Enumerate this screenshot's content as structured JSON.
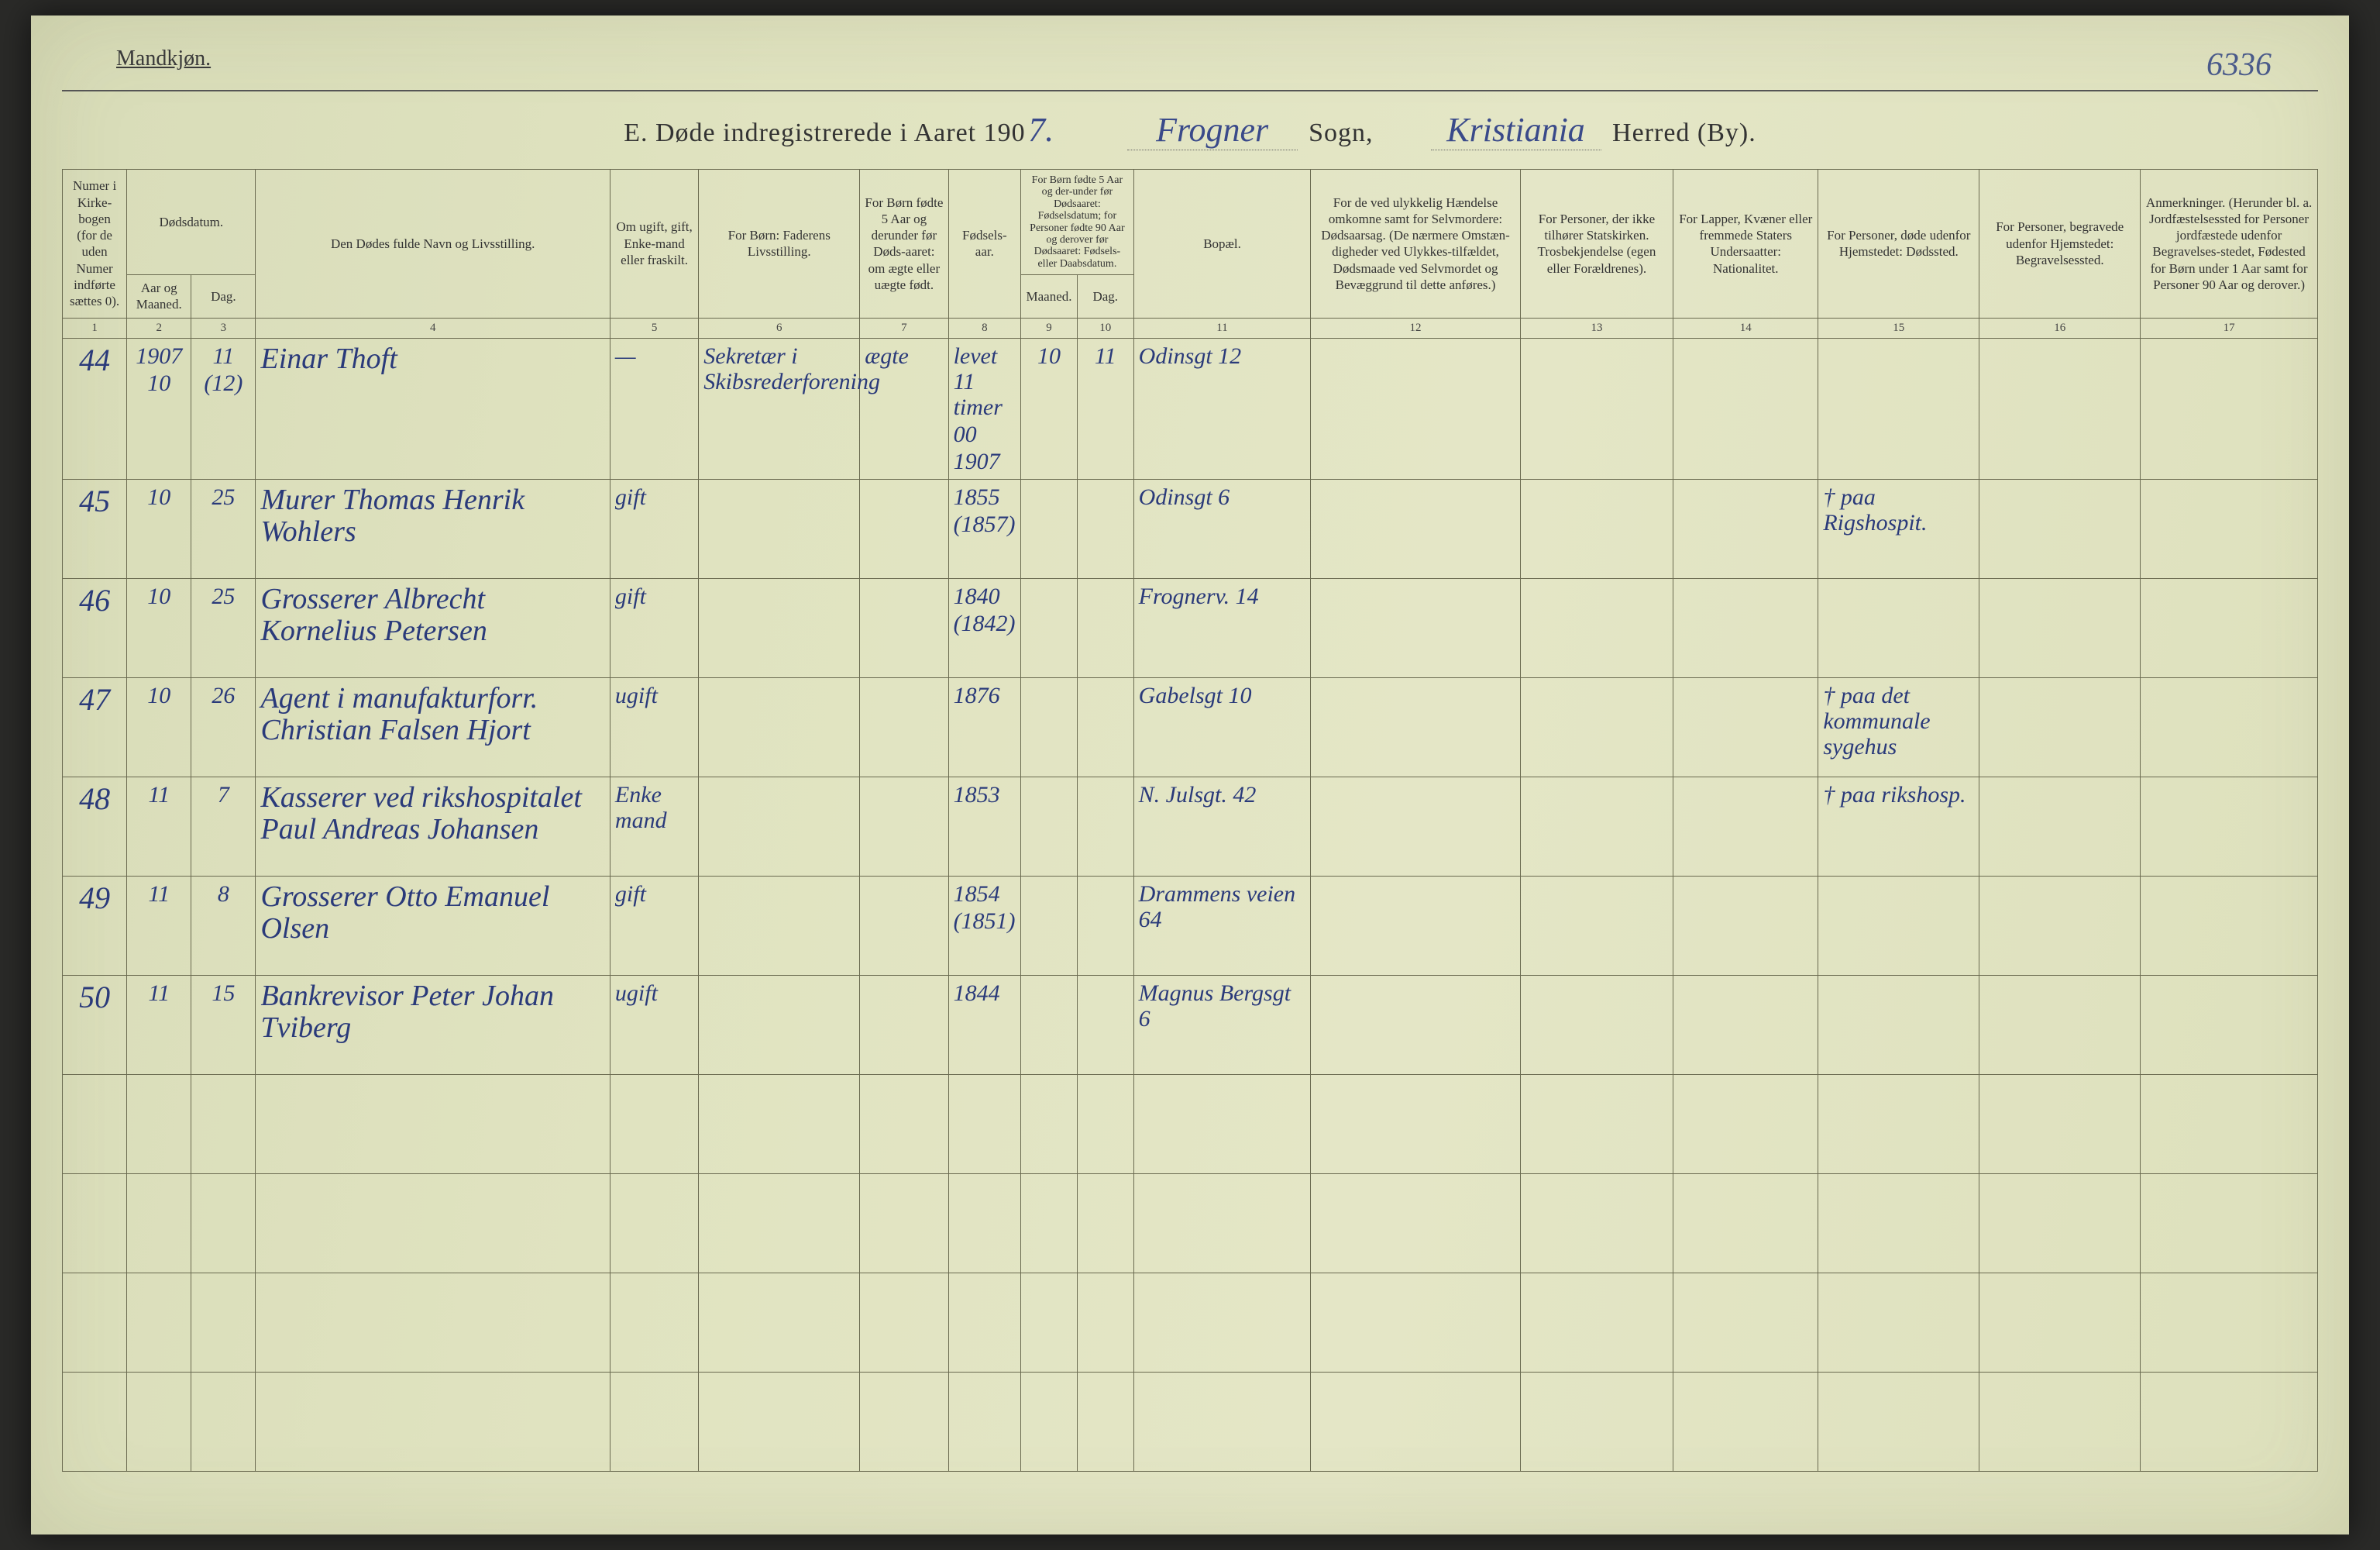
{
  "page_corner_number": "6336",
  "gender_label": "Mandkjøn.",
  "title": {
    "prefix": "E.  Døde indregistrerede i Aaret 190",
    "year_digit": "7.",
    "sogn_value": "Frogner",
    "sogn_label": "Sogn,",
    "herred_value": "Kristiania",
    "herred_label": "Herred (By)."
  },
  "columns": {
    "c1": "Numer i Kirke-bogen (for de uden Numer indførte sættes 0).",
    "c2_top": "Dødsdatum.",
    "c2": "Aar og Maaned.",
    "c3": "Dag.",
    "c4": "Den Dødes fulde Navn og Livsstilling.",
    "c5": "Om ugift, gift, Enke-mand eller fraskilt.",
    "c6": "For Børn:\nFaderens Livsstilling.",
    "c7": "For Børn fødte 5 Aar og derunder før Døds-aaret: om ægte eller uægte født.",
    "c8": "Fødsels-aar.",
    "c9_10": "For Børn fødte 5 Aar og der-under før Dødsaaret: Fødselsdatum; for Personer fødte 90 Aar og derover før Dødsaaret: Fødsels- eller Daabsdatum.",
    "c9": "Maaned.",
    "c10": "Dag.",
    "c11": "Bopæl.",
    "c12": "For de ved ulykkelig Hændelse omkomne samt for Selvmordere:\nDødsaarsag.\n(De nærmere Omstæn-digheder ved Ulykkes-tilfældet, Dødsmaade ved Selvmordet og Bevæggrund til dette anføres.)",
    "c13": "For Personer, der ikke tilhører Statskirken.\nTrosbekjendelse (egen eller Forældrenes).",
    "c14": "For Lapper, Kvæner eller fremmede Staters Undersaatter:\nNationalitet.",
    "c15": "For Personer, døde udenfor Hjemstedet:\nDødssted.",
    "c16": "For Personer, begravede udenfor Hjemstedet:\nBegravelsessted.",
    "c17": "Anmerkninger.\n(Herunder bl. a. Jordfæstelsessted for Personer jordfæstede udenfor Begravelses-stedet, Fødested for Børn under 1 Aar samt for Personer 90 Aar og derover.)"
  },
  "colnums": [
    "1",
    "2",
    "3",
    "4",
    "5",
    "6",
    "7",
    "8",
    "9",
    "10",
    "11",
    "12",
    "13",
    "14",
    "15",
    "16",
    "17"
  ],
  "rows": [
    {
      "no": "44",
      "aar": "1907\n10",
      "dag": "11\n(12)",
      "navn": "Einar Thoft",
      "stand": "—",
      "far": "Sekretær i Skibsrederforening",
      "c7": "ægte",
      "faar": "levet 11 timer\n00\n1907",
      "c9": "10",
      "c10": "11",
      "bopael": "Odinsgt 12",
      "c15": ""
    },
    {
      "no": "45",
      "aar": "10",
      "dag": "25",
      "navn": "Murer Thomas Henrik Wohlers",
      "stand": "gift",
      "faar": "1855\n(1857)",
      "bopael": "Odinsgt 6",
      "c15": "† paa Rigshospit."
    },
    {
      "no": "46",
      "aar": "10",
      "dag": "25",
      "navn": "Grosserer Albrecht Kornelius Petersen",
      "stand": "gift",
      "faar": "1840\n(1842)",
      "bopael": "Frognerv. 14",
      "c15": ""
    },
    {
      "no": "47",
      "aar": "10",
      "dag": "26",
      "navn": "Agent i manufakturforr. Christian Falsen Hjort",
      "stand": "ugift",
      "faar": "1876",
      "bopael": "Gabelsgt 10",
      "c15": "† paa det kommunale sygehus"
    },
    {
      "no": "48",
      "aar": "11",
      "dag": "7",
      "navn": "Kasserer ved rikshospitalet Paul Andreas Johansen",
      "stand": "Enke mand",
      "faar": "1853",
      "bopael": "N. Julsgt. 42",
      "c15": "† paa rikshosp."
    },
    {
      "no": "49",
      "aar": "11",
      "dag": "8",
      "navn": "Grosserer Otto Emanuel Olsen",
      "stand": "gift",
      "faar": "1854\n(1851)",
      "bopael": "Drammens veien 64",
      "c15": ""
    },
    {
      "no": "50",
      "aar": "11",
      "dag": "15",
      "navn": "Bankrevisor Peter Johan Tviberg",
      "stand": "ugift",
      "faar": "1844",
      "bopael": "Magnus Bergsgt 6",
      "c15": ""
    }
  ],
  "empty_rows": 4,
  "colors": {
    "paper": "#e0e3c0",
    "ink_print": "#333333",
    "ink_hand": "#2a3a7a",
    "rule": "#6a6a50"
  }
}
